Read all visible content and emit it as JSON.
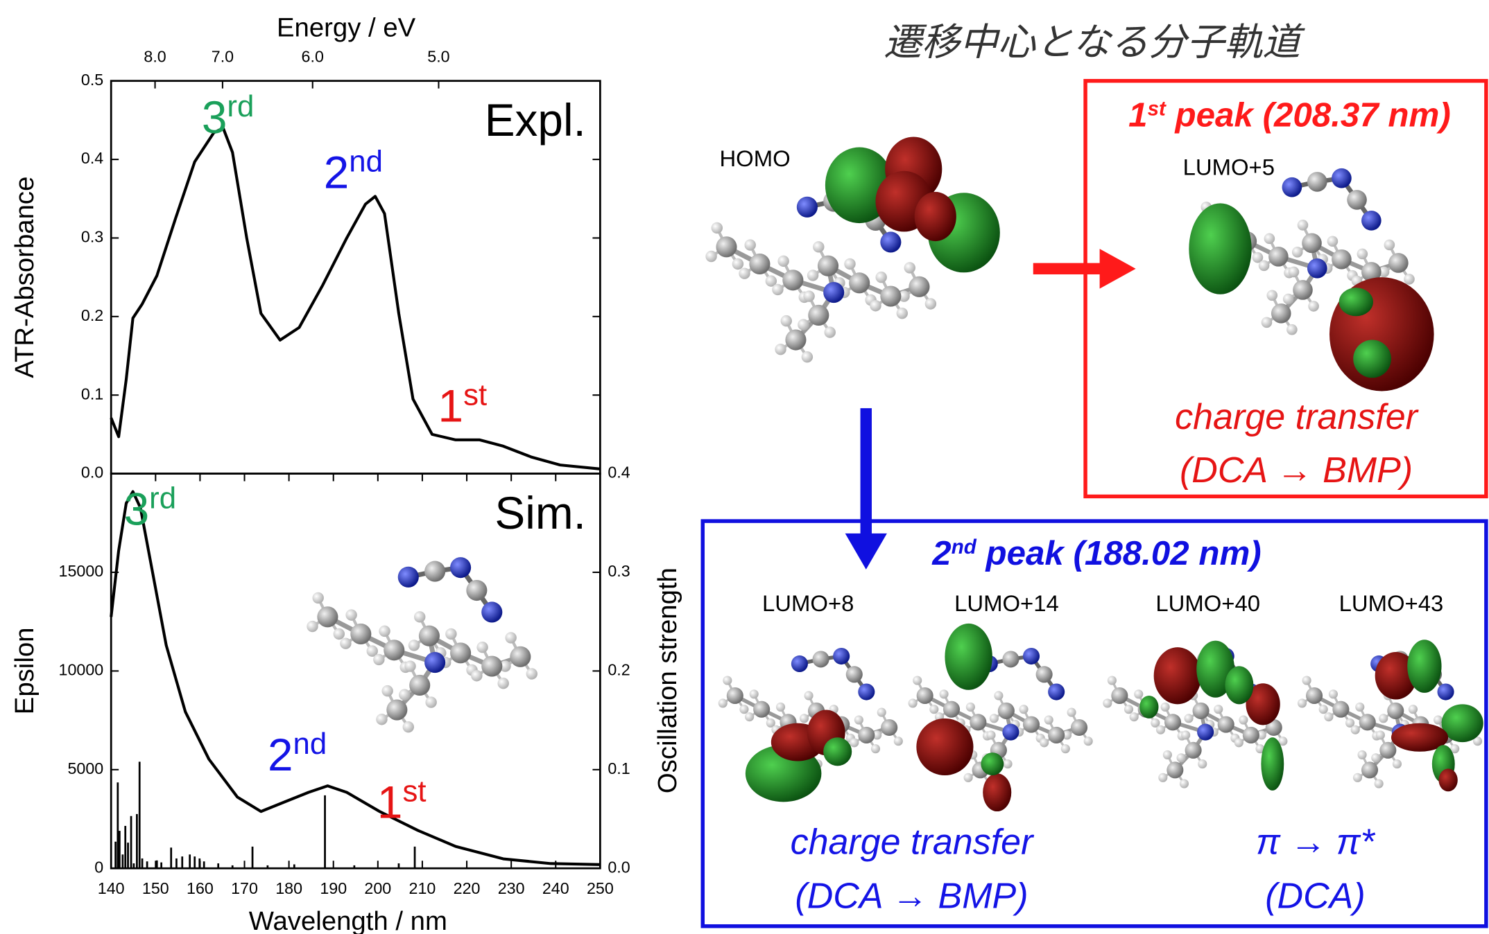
{
  "chart_data": [
    {
      "type": "line",
      "x2label": "Energy / eV",
      "ylabel": "ATR-Absorbance",
      "x": [
        140,
        141.7,
        143.4,
        144.9,
        147,
        150.3,
        154.5,
        158.8,
        163.1,
        165.2,
        167.3,
        170.5,
        173.7,
        178,
        182.3,
        187.6,
        193,
        197.2,
        199.4,
        201.5,
        204.7,
        207.9,
        212.2,
        217.5,
        222.9,
        228.2,
        234.6,
        241,
        250
      ],
      "values": [
        0.071,
        0.047,
        0.12,
        0.198,
        0.216,
        0.252,
        0.325,
        0.397,
        0.434,
        0.44,
        0.409,
        0.3,
        0.204,
        0.17,
        0.186,
        0.24,
        0.3,
        0.343,
        0.353,
        0.331,
        0.204,
        0.095,
        0.05,
        0.043,
        0.043,
        0.035,
        0.021,
        0.011,
        0.006
      ],
      "color": "#000000",
      "xlim": [
        140,
        250
      ],
      "ylim": [
        0,
        0.5
      ],
      "yticks": [
        {
          "value": 0,
          "label": "0.0"
        },
        0.1,
        0.2,
        0.3,
        0.4,
        0.5
      ],
      "x2lim": [
        8.82,
        4.12
      ],
      "x2scale": "reciprocal",
      "x2ticks": [
        {
          "value": 8,
          "label": "8.0"
        },
        {
          "value": 7,
          "label": "7.0"
        },
        {
          "value": 6,
          "label": "6.0"
        },
        {
          "value": 5,
          "label": "5.0"
        }
      ],
      "panel_label": "Expl.",
      "annotations": [
        {
          "text": "3",
          "sup": "rd",
          "color": "#1aa05a"
        },
        {
          "text": "2",
          "sup": "nd",
          "color": "#1414e6"
        },
        {
          "text": "1",
          "sup": "st",
          "color": "#e61414"
        }
      ]
    },
    {
      "type": "line",
      "xlabel": "Wavelength / nm",
      "ylabel": "Epsilon",
      "y2label": "Oscillation strength",
      "xlim": [
        140,
        250
      ],
      "xticks": [
        140,
        150,
        160,
        170,
        180,
        190,
        200,
        210,
        220,
        230,
        240,
        250
      ],
      "ylim": [
        0,
        20000
      ],
      "yticks": [
        0,
        5000,
        10000,
        15000
      ],
      "y2lim": [
        0,
        0.4
      ],
      "y2ticks": [
        {
          "value": 0,
          "label": "0.0"
        },
        0.1,
        0.2,
        0.3,
        0.4
      ],
      "series": [
        {
          "color": "#000000",
          "x": [
            140,
            141.7,
            143.4,
            144.9,
            146.6,
            149.2,
            152.4,
            156.7,
            162,
            168.4,
            173.7,
            179.1,
            184.4,
            188.7,
            193,
            200.4,
            209,
            217.5,
            228.2,
            238.9,
            250
          ],
          "values": [
            12740,
            16100,
            18500,
            19090,
            18270,
            15150,
            11300,
            7930,
            5530,
            3610,
            2880,
            3370,
            3850,
            4180,
            3850,
            2880,
            1920,
            1110,
            480,
            240,
            190
          ]
        },
        {
          "axis": "y2",
          "style": "stick",
          "color": "#000000",
          "x": [
            141,
            141.5,
            141.9,
            142.6,
            143.2,
            143.8,
            144.5,
            145.1,
            145.8,
            146.4,
            147,
            148.1,
            150.3,
            151.3,
            153.5,
            154.7,
            156,
            157.7,
            158.8,
            159.9,
            160.9,
            164.1,
            167.3,
            171.8,
            175.2,
            181.2,
            188.1,
            194.7,
            204.7,
            208.3
          ],
          "values": [
            0.027,
            0.087,
            0.038,
            0.014,
            0.043,
            0.026,
            0.053,
            0.005,
            0.055,
            0.108,
            0.01,
            0.007,
            0.008,
            0.006,
            0.021,
            0.01,
            0.012,
            0.014,
            0.012,
            0.01,
            0.007,
            0.005,
            0.003,
            0.022,
            0.003,
            0.004,
            0.074,
            0.003,
            0.005,
            0.022
          ]
        }
      ],
      "panel_label": "Sim.",
      "annotations": [
        {
          "text": "3",
          "sup": "rd",
          "color": "#1aa05a"
        },
        {
          "text": "2",
          "sup": "nd",
          "color": "#1414e6"
        },
        {
          "text": "1",
          "sup": "st",
          "color": "#e61414"
        }
      ]
    }
  ],
  "diagram": {
    "title": "遷移中心となる分子軌道",
    "homo": "HOMO",
    "peak1": {
      "title": [
        "1",
        "st",
        " peak (208.37 nm)"
      ],
      "orbitals": [
        "LUMO+5"
      ],
      "character": [
        "charge transfer",
        "(DCA → BMP)"
      ]
    },
    "peak2": {
      "title": [
        "2",
        "nd",
        " peak (188.02 nm)"
      ],
      "orbitals": [
        "LUMO+8",
        "LUMO+14",
        "LUMO+40",
        "LUMO+43"
      ],
      "characters": [
        [
          "charge transfer",
          "(DCA → BMP)"
        ],
        [
          "π → π*",
          "(DCA)"
        ]
      ]
    }
  }
}
